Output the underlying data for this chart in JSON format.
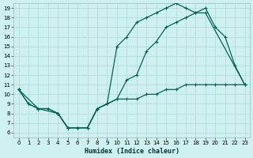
{
  "xlabel": "Humidex (Indice chaleur)",
  "bg_color": "#cff0f0",
  "grid_color": "#aed8d8",
  "line_color": "#006655",
  "xlim": [
    -0.5,
    23.5
  ],
  "ylim": [
    5.5,
    19.5
  ],
  "xticks": [
    0,
    1,
    2,
    3,
    4,
    5,
    6,
    7,
    8,
    9,
    10,
    11,
    12,
    13,
    14,
    15,
    16,
    17,
    18,
    19,
    20,
    21,
    22,
    23
  ],
  "yticks": [
    6,
    7,
    8,
    9,
    10,
    11,
    12,
    13,
    14,
    15,
    16,
    17,
    18,
    19
  ],
  "line1_x": [
    0,
    1,
    2,
    3,
    4,
    5,
    6,
    7,
    8,
    9,
    10,
    11,
    12,
    13,
    14,
    15,
    16,
    17,
    18,
    19,
    20,
    21,
    22,
    23
  ],
  "line1_y": [
    10.5,
    9.0,
    8.5,
    8.5,
    8.0,
    6.5,
    6.5,
    6.5,
    8.5,
    9.0,
    9.5,
    11.5,
    12.0,
    14.5,
    15.5,
    17.0,
    17.5,
    18.0,
    18.5,
    19.0,
    17.0,
    16.0,
    13.0,
    11.0
  ],
  "line2_x": [
    0,
    2,
    4,
    5,
    6,
    7,
    8,
    9,
    10,
    11,
    12,
    13,
    14,
    15,
    16,
    17,
    18,
    19,
    23
  ],
  "line2_y": [
    10.5,
    8.5,
    8.0,
    6.5,
    6.5,
    6.5,
    8.5,
    9.0,
    15.0,
    16.0,
    17.5,
    18.0,
    18.5,
    19.0,
    19.5,
    19.0,
    18.5,
    18.5,
    11.0
  ],
  "line3_x": [
    0,
    1,
    2,
    3,
    4,
    5,
    6,
    7,
    8,
    9,
    10,
    11,
    12,
    13,
    14,
    15,
    16,
    17,
    18,
    19,
    20,
    21,
    22,
    23
  ],
  "line3_y": [
    10.5,
    9.0,
    8.5,
    8.5,
    8.0,
    6.5,
    6.5,
    6.5,
    8.5,
    9.0,
    9.5,
    9.5,
    9.5,
    10.0,
    10.0,
    10.5,
    10.5,
    11.0,
    11.0,
    11.0,
    11.0,
    11.0,
    11.0,
    11.0
  ]
}
